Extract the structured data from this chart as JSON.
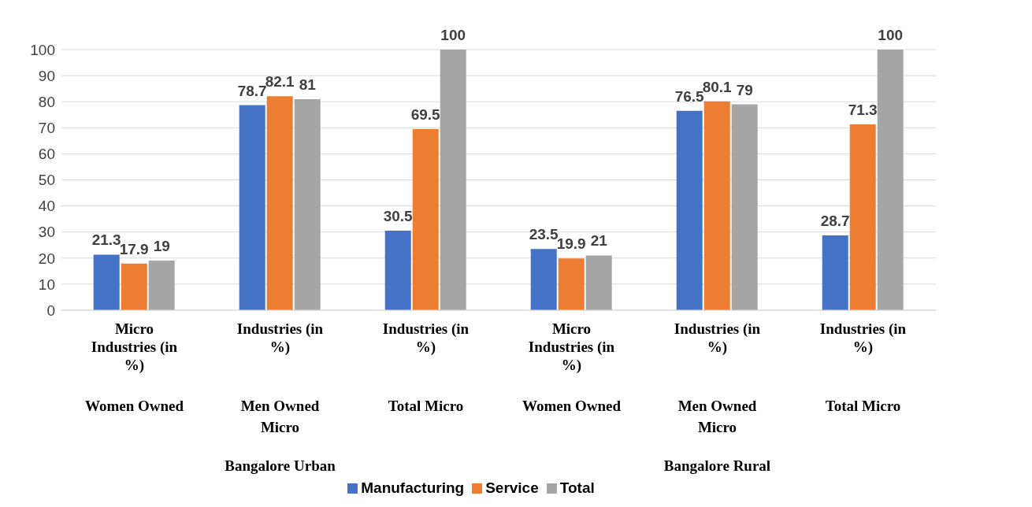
{
  "chart_data": {
    "type": "bar",
    "categories": [
      "Micro Industries (in %)",
      "Industries (in %)",
      "Industries (in %)",
      "Micro Industries (in %)",
      "Industries (in %)",
      "Industries (in %)"
    ],
    "series": [
      {
        "name": "Manufacturing",
        "color": "#4472c4",
        "values": [
          21.3,
          78.7,
          30.5,
          23.5,
          76.5,
          28.7
        ]
      },
      {
        "name": "Service",
        "color": "#ed7d31",
        "values": [
          17.9,
          82.1,
          69.5,
          19.9,
          80.1,
          71.3
        ]
      },
      {
        "name": "Total",
        "color": "#a5a5a5",
        "values": [
          19,
          81,
          100,
          21,
          79,
          100
        ]
      }
    ],
    "annotations": [
      "Women Owned",
      "Men Owned Micro",
      "Total Micro",
      "Women Owned",
      "Men Owned Micro",
      "Total Micro",
      "Bangalore Urban",
      "Bangalore Rural"
    ],
    "ylim": [
      0,
      100
    ],
    "yticks": [
      0,
      10,
      20,
      30,
      40,
      50,
      60,
      70,
      80,
      90,
      100
    ],
    "grid": "y",
    "legend": "bottom",
    "data_labels": true
  }
}
